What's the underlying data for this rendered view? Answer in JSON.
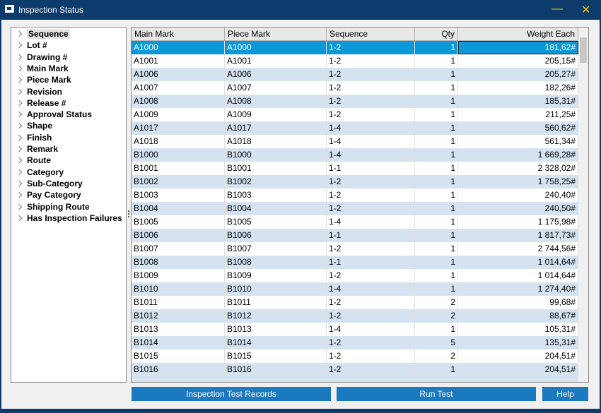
{
  "window": {
    "title": "Inspection Status"
  },
  "tree": {
    "items": [
      "Sequence",
      "Lot #",
      "Drawing #",
      "Main Mark",
      "Piece Mark",
      "Revision",
      "Release #",
      "Approval Status",
      "Shape",
      "Finish",
      "Remark",
      "Route",
      "Category",
      "Sub-Category",
      "Pay Category",
      "Shipping Route",
      "Has Inspection Failures"
    ]
  },
  "table": {
    "columns": [
      "Main Mark",
      "Piece Mark",
      "Sequence",
      "Qty",
      "Weight Each"
    ],
    "rows": [
      [
        "A1000",
        "A1000",
        "1-2",
        "1",
        "181,62#"
      ],
      [
        "A1001",
        "A1001",
        "1-2",
        "1",
        "205,15#"
      ],
      [
        "A1006",
        "A1006",
        "1-2",
        "1",
        "205,27#"
      ],
      [
        "A1007",
        "A1007",
        "1-2",
        "1",
        "182,26#"
      ],
      [
        "A1008",
        "A1008",
        "1-2",
        "1",
        "185,31#"
      ],
      [
        "A1009",
        "A1009",
        "1-2",
        "1",
        "211,25#"
      ],
      [
        "A1017",
        "A1017",
        "1-4",
        "1",
        "560,62#"
      ],
      [
        "A1018",
        "A1018",
        "1-4",
        "1",
        "561,34#"
      ],
      [
        "B1000",
        "B1000",
        "1-4",
        "1",
        "1 669,28#"
      ],
      [
        "B1001",
        "B1001",
        "1-1",
        "1",
        "2 328,02#"
      ],
      [
        "B1002",
        "B1002",
        "1-2",
        "1",
        "1 758,25#"
      ],
      [
        "B1003",
        "B1003",
        "1-2",
        "1",
        "240,40#"
      ],
      [
        "B1004",
        "B1004",
        "1-2",
        "1",
        "240,50#"
      ],
      [
        "B1005",
        "B1005",
        "1-4",
        "1",
        "1 175,98#"
      ],
      [
        "B1006",
        "B1006",
        "1-1",
        "1",
        "1 817,73#"
      ],
      [
        "B1007",
        "B1007",
        "1-2",
        "1",
        "2 744,56#"
      ],
      [
        "B1008",
        "B1008",
        "1-1",
        "1",
        "1 014,64#"
      ],
      [
        "B1009",
        "B1009",
        "1-2",
        "1",
        "1 014,64#"
      ],
      [
        "B1010",
        "B1010",
        "1-4",
        "1",
        "1 274,40#"
      ],
      [
        "B1011",
        "B1011",
        "1-2",
        "2",
        "99,68#"
      ],
      [
        "B1012",
        "B1012",
        "1-2",
        "2",
        "88,67#"
      ],
      [
        "B1013",
        "B1013",
        "1-4",
        "1",
        "105,31#"
      ],
      [
        "B1014",
        "B1014",
        "1-2",
        "5",
        "135,31#"
      ],
      [
        "B1015",
        "B1015",
        "1-2",
        "2",
        "204,51#"
      ],
      [
        "B1016",
        "B1016",
        "1-2",
        "1",
        "204,51#"
      ]
    ]
  },
  "buttons": [
    "Inspection Test Records",
    "Run Test",
    "Help"
  ]
}
